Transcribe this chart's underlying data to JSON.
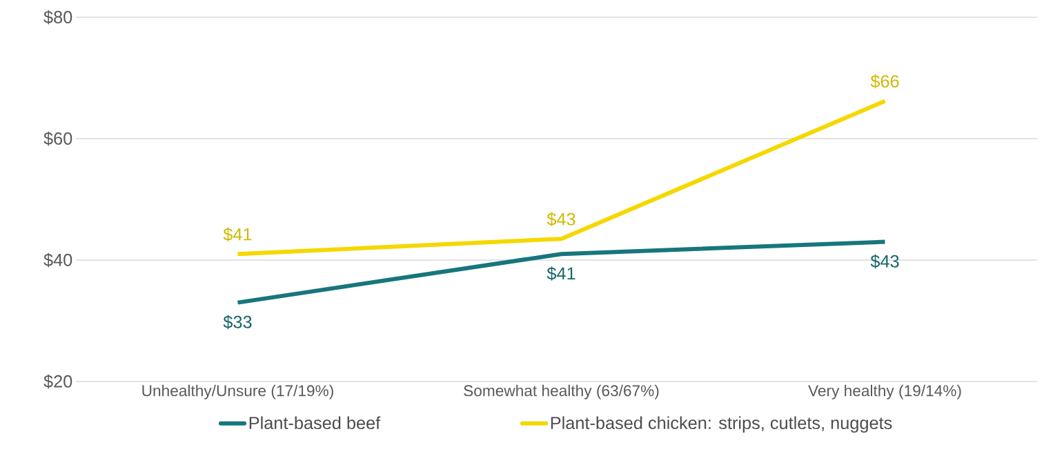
{
  "chart_data": {
    "type": "line",
    "categories": [
      "Unhealthy/Unsure (17/19%)",
      "Somewhat healthy (63/67%)",
      "Very healthy (19/14%)"
    ],
    "series": [
      {
        "name": "Plant-based beef",
        "color": "#17767c",
        "values": [
          33,
          41,
          43
        ],
        "value_labels": [
          "$33",
          "$41",
          "$43"
        ]
      },
      {
        "name": "Plant-based chicken: strips, cutlets, nuggets",
        "color": "#f5d800",
        "values": [
          41,
          43.5,
          66.2
        ],
        "value_labels": [
          "$41",
          "$43",
          "$66"
        ]
      }
    ],
    "ylim": [
      20,
      80
    ],
    "yticks": [
      {
        "value": 20,
        "label": "$20"
      },
      {
        "value": 40,
        "label": "$40"
      },
      {
        "value": 60,
        "label": "$60"
      },
      {
        "value": 80,
        "label": "$80"
      }
    ],
    "grid": "y",
    "legend": "bottom",
    "marker": "none",
    "line_style": "solid"
  }
}
